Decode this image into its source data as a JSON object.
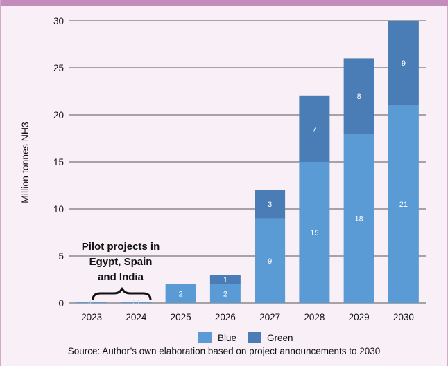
{
  "colors": {
    "blue": "#5b9bd5",
    "green": "#4a7db5",
    "grid": "#555555",
    "frame_bg": "#f8f0f6",
    "frame_border": "#d2a8c9",
    "top_bar": "#c48bbd"
  },
  "chart_data": {
    "type": "bar",
    "stacked": true,
    "categories": [
      "2023",
      "2024",
      "2025",
      "2026",
      "2027",
      "2028",
      "2029",
      "2030"
    ],
    "series": [
      {
        "name": "Blue",
        "values": [
          0.1,
          0.1,
          2,
          2,
          9,
          15,
          18,
          21
        ],
        "labels": [
          "0.1",
          "0.1",
          "2",
          "2",
          "9",
          "15",
          "18",
          "21"
        ]
      },
      {
        "name": "Green",
        "values": [
          0,
          0,
          0,
          1,
          3,
          7,
          8,
          9
        ],
        "labels": [
          "",
          "",
          "",
          "1",
          "3",
          "7",
          "8",
          "9"
        ]
      }
    ],
    "ylabel": "Million tonnes NH3",
    "xlabel": "",
    "ylim": [
      0,
      30
    ],
    "yticks": [
      0,
      5,
      10,
      15,
      20,
      25,
      30
    ],
    "grid": true,
    "legend": "bottom-center",
    "annotation": {
      "lines": [
        "Pilot projects in",
        "Egypt, Spain",
        "and India"
      ],
      "brace_over": [
        "2023",
        "2024"
      ]
    }
  },
  "source": "Source: Author’s own elaboration based on project announcements to 2030"
}
